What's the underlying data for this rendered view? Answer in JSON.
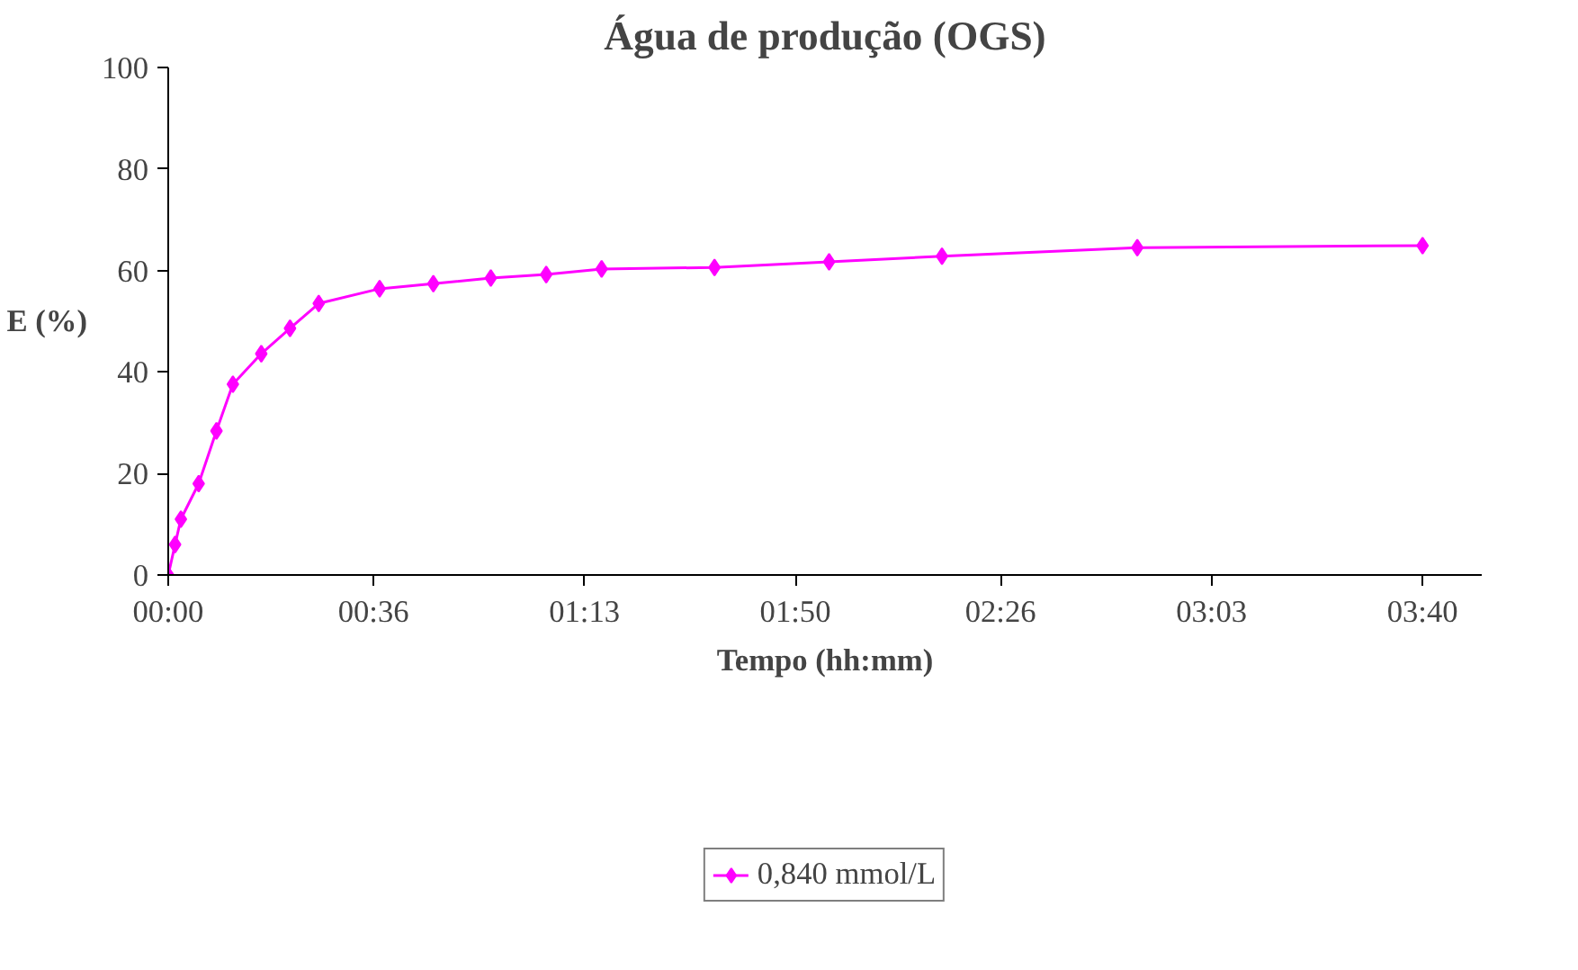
{
  "chart_data": {
    "type": "line",
    "title": "Água de produção (OGS)",
    "xlabel": "Tempo (hh:mm)",
    "ylabel": "E (%)",
    "x": [
      0,
      0.02,
      0.037,
      0.089,
      0.141,
      0.189,
      0.272,
      0.356,
      0.44,
      0.618,
      0.775,
      0.943,
      1.105,
      1.267,
      1.597,
      1.932,
      2.262,
      2.833,
      3.667
    ],
    "series": [
      {
        "name": "0,840 mmol/L",
        "color": "#ff00ff",
        "values": [
          0,
          6,
          11,
          18,
          28.4,
          37.6,
          43.6,
          48.6,
          53.5,
          56.4,
          57.4,
          58.5,
          59.2,
          60.3,
          60.6,
          61.7,
          62.8,
          64.5,
          64.9
        ]
      }
    ],
    "xlim": [
      0,
      3.84
    ],
    "xticks": [
      {
        "value": 0,
        "label": "00:00"
      },
      {
        "value": 0.6,
        "label": "00:36"
      },
      {
        "value": 1.2167,
        "label": "01:13"
      },
      {
        "value": 1.8333,
        "label": "01:50"
      },
      {
        "value": 2.4333,
        "label": "02:26"
      },
      {
        "value": 3.05,
        "label": "03:03"
      },
      {
        "value": 3.6667,
        "label": "03:40"
      }
    ],
    "ylim": [
      0,
      100
    ],
    "yticks": [
      0,
      20,
      40,
      60,
      80,
      100
    ],
    "grid": false,
    "legend": "bottom",
    "marker": "diamond",
    "line_style": "solid"
  }
}
